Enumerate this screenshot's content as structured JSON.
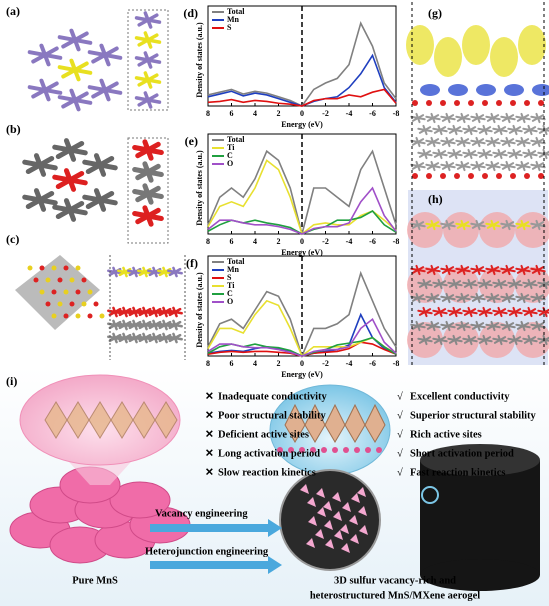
{
  "panels": {
    "a": "(a)",
    "b": "(b)",
    "c": "(c)",
    "g": "(g)",
    "h": "(h)",
    "i": "(i)"
  },
  "chart_data": [
    {
      "type": "line",
      "panel": "(d)",
      "xlabel": "Energy (eV)",
      "ylabel": "Density of states (a.u.)",
      "x": [
        8,
        7,
        6,
        5,
        4,
        3,
        2,
        1,
        0,
        -1,
        -2,
        -3,
        -4,
        -5,
        -6,
        -7,
        -8
      ],
      "xlim": [
        8,
        -8
      ],
      "xticks": [
        8,
        6,
        4,
        2,
        0,
        -2,
        -4,
        -6,
        -8
      ],
      "ylim": [
        0,
        10
      ],
      "series": [
        {
          "name": "Total",
          "color": "#808080",
          "values": [
            1.2,
            1.5,
            1.8,
            1.3,
            1.6,
            1.4,
            1.0,
            0.6,
            0,
            1.8,
            2.5,
            3.0,
            4.5,
            9.0,
            6.5,
            2.5,
            0.8
          ]
        },
        {
          "name": "Mn",
          "color": "#1f3fbf",
          "values": [
            1.0,
            1.3,
            1.6,
            1.1,
            1.4,
            1.2,
            0.8,
            0.4,
            0,
            0.5,
            0.8,
            1.0,
            2.0,
            3.5,
            5.5,
            2.0,
            0.4
          ]
        },
        {
          "name": "S",
          "color": "#e01010",
          "values": [
            0.4,
            0.5,
            0.7,
            0.4,
            0.6,
            0.5,
            0.3,
            0.2,
            0,
            0.6,
            0.8,
            0.8,
            1.2,
            1.0,
            1.5,
            1.8,
            0.3
          ]
        }
      ]
    },
    {
      "type": "line",
      "panel": "(e)",
      "xlabel": "Energy (eV)",
      "ylabel": "Density of states (a.u.)",
      "x": [
        8,
        7,
        6,
        5,
        4,
        3,
        2,
        1,
        0,
        -1,
        -2,
        -3,
        -4,
        -5,
        -6,
        -7,
        -8
      ],
      "xlim": [
        8,
        -8
      ],
      "xticks": [
        8,
        6,
        4,
        2,
        0,
        -2,
        -4,
        -6,
        -8
      ],
      "ylim": [
        0,
        10
      ],
      "series": [
        {
          "name": "Total",
          "color": "#808080",
          "values": [
            1,
            4,
            5,
            4,
            6,
            9,
            8,
            5,
            0,
            5,
            5,
            4,
            3,
            7,
            9,
            5,
            1
          ]
        },
        {
          "name": "Ti",
          "color": "#e8e030",
          "values": [
            0.8,
            3,
            3.5,
            3,
            5,
            8,
            7,
            4,
            0,
            1,
            1.2,
            1,
            1,
            2,
            2.5,
            1.5,
            0.4
          ]
        },
        {
          "name": "C",
          "color": "#20a040",
          "values": [
            0.3,
            1,
            1.5,
            1.2,
            1.5,
            1.2,
            1,
            0.7,
            0,
            0.5,
            0.8,
            1.5,
            1.5,
            1.8,
            2.5,
            1,
            0.2
          ]
        },
        {
          "name": "O",
          "color": "#a050c8",
          "values": [
            0.5,
            1.5,
            1.5,
            1.2,
            1,
            1,
            0.8,
            0.5,
            0,
            0.6,
            0.8,
            0.8,
            1.2,
            3.5,
            5,
            2,
            0.3
          ]
        }
      ]
    },
    {
      "type": "line",
      "panel": "(f)",
      "xlabel": "Energy (eV)",
      "ylabel": "Density of states (a.u.)",
      "x": [
        8,
        7,
        6,
        5,
        4,
        3,
        2,
        1,
        0,
        -1,
        -2,
        -3,
        -4,
        -5,
        -6,
        -7,
        -8
      ],
      "xlim": [
        8,
        -8
      ],
      "xticks": [
        8,
        6,
        4,
        2,
        0,
        -2,
        -4,
        -6,
        -8
      ],
      "ylim": [
        0,
        10
      ],
      "series": [
        {
          "name": "Total",
          "color": "#808080",
          "values": [
            1,
            3.5,
            4,
            3,
            5,
            7,
            6.5,
            4,
            0,
            3,
            3,
            3.5,
            4.5,
            9,
            6,
            3,
            1
          ]
        },
        {
          "name": "Mn",
          "color": "#1f3fbf",
          "values": [
            0.3,
            0.5,
            0.6,
            0.5,
            0.8,
            1,
            0.8,
            0.5,
            0,
            0.3,
            0.5,
            0.7,
            1.2,
            4.5,
            2,
            0.8,
            0.2
          ]
        },
        {
          "name": "S",
          "color": "#e01010",
          "values": [
            0.2,
            0.4,
            0.5,
            0.4,
            0.5,
            0.5,
            0.4,
            0.3,
            0,
            0.3,
            0.4,
            0.5,
            0.8,
            1.5,
            1.3,
            0.7,
            0.2
          ]
        },
        {
          "name": "Ti",
          "color": "#e8e030",
          "values": [
            0.8,
            3,
            3,
            2.5,
            4.5,
            6,
            5.5,
            3,
            0,
            1,
            1,
            1,
            1,
            1.5,
            2,
            1,
            0.3
          ]
        },
        {
          "name": "C",
          "color": "#20a040",
          "values": [
            0.3,
            1,
            1.3,
            1,
            1.3,
            1,
            0.9,
            0.6,
            0,
            0.4,
            0.7,
            1.2,
            1.4,
            1.6,
            2,
            1,
            0.2
          ]
        },
        {
          "name": "O",
          "color": "#a050c8",
          "values": [
            0.5,
            1.3,
            1.3,
            1,
            0.9,
            0.9,
            0.7,
            0.4,
            0,
            0.5,
            0.7,
            0.7,
            1,
            3,
            4,
            1.5,
            0.3
          ]
        }
      ]
    }
  ],
  "scheme": {
    "cons_marker": "✕",
    "pros_marker": "√",
    "cons": [
      "Inadequate conductivity",
      "Poor structural stability",
      "Deficient active sites",
      "Long activation period",
      "Slow reaction kinetics"
    ],
    "pros": [
      "Excellent conductivity",
      "Superior structural stability",
      "Rich active sites",
      "Short activation period",
      "Fast reaction kinetics"
    ],
    "step1": "Vacancy engineering",
    "step2": "Heterojunction engineering",
    "left_label": "Pure MnS",
    "right_label": [
      "3D sulfur vacancy-rich and",
      "heterostructured MnS/MXene aerogel"
    ]
  }
}
